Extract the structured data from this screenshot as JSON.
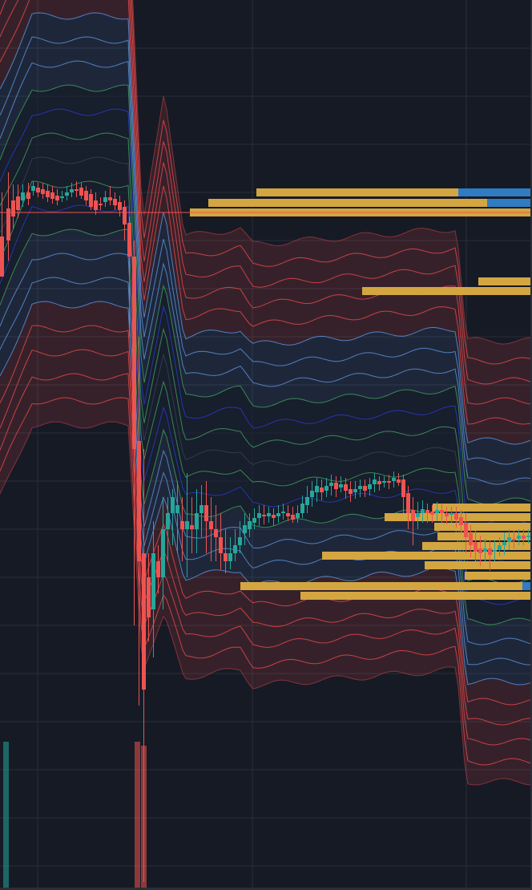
{
  "theme": {
    "background": "#161a25",
    "grid": "#2a2e39",
    "up": "#26a69a",
    "down": "#ef5350",
    "profile": "#d4a641",
    "profile_accent": "#2f7cc4",
    "band_red": "#e04848",
    "band_blue": "#5b8fd6",
    "band_green": "#3f9a5a",
    "band_dark_blue": "#2a39c8"
  },
  "chart_data": {
    "type": "candlestick",
    "xlabel": "",
    "ylabel": "",
    "ylim": [
      0,
      1110
    ],
    "grid": true,
    "legend": "none",
    "price_line": 265,
    "candles": [
      [
        0,
        295,
        345,
        240,
        340
      ],
      [
        8,
        260,
        300,
        215,
        325
      ],
      [
        14,
        250,
        270,
        230,
        285
      ],
      [
        20,
        245,
        262,
        230,
        272
      ],
      [
        26,
        250,
        240,
        230,
        258
      ],
      [
        33,
        240,
        248,
        228,
        256
      ],
      [
        39,
        238,
        232,
        226,
        244
      ],
      [
        45,
        234,
        240,
        228,
        246
      ],
      [
        51,
        236,
        242,
        228,
        248
      ],
      [
        57,
        238,
        246,
        230,
        252
      ],
      [
        63,
        240,
        248,
        232,
        254
      ],
      [
        69,
        244,
        250,
        236,
        256
      ],
      [
        75,
        246,
        245,
        238,
        252
      ],
      [
        81,
        244,
        240,
        232,
        250
      ],
      [
        87,
        240,
        236,
        228,
        246
      ],
      [
        93,
        236,
        238,
        226,
        246
      ],
      [
        99,
        234,
        244,
        228,
        248
      ],
      [
        105,
        238,
        250,
        232,
        256
      ],
      [
        111,
        242,
        258,
        236,
        262
      ],
      [
        117,
        250,
        262,
        240,
        268
      ],
      [
        123,
        254,
        256,
        246,
        262
      ],
      [
        129,
        252,
        246,
        238,
        258
      ],
      [
        135,
        246,
        250,
        232,
        256
      ],
      [
        141,
        248,
        256,
        240,
        262
      ],
      [
        147,
        252,
        262,
        244,
        270
      ],
      [
        153,
        258,
        280,
        250,
        300
      ],
      [
        159,
        278,
        320,
        270,
        420
      ],
      [
        165,
        320,
        560,
        300,
        780
      ],
      [
        171,
        550,
        700,
        420,
        880
      ],
      [
        177,
        690,
        860,
        560,
        1100
      ],
      [
        183,
        720,
        770,
        690,
        800
      ],
      [
        189,
        760,
        690,
        650,
        820
      ],
      [
        195,
        700,
        720,
        680,
        740
      ],
      [
        201,
        720,
        660,
        620,
        760
      ],
      [
        207,
        660,
        640,
        620,
        700
      ],
      [
        213,
        640,
        620,
        610,
        680
      ],
      [
        219,
        640,
        630,
        600,
        690
      ],
      [
        225,
        650,
        660,
        620,
        700
      ],
      [
        231,
        660,
        650,
        590,
        720
      ],
      [
        237,
        655,
        660,
        620,
        690
      ],
      [
        243,
        660,
        640,
        610,
        690
      ],
      [
        249,
        640,
        630,
        605,
        670
      ],
      [
        255,
        630,
        650,
        600,
        690
      ],
      [
        261,
        650,
        660,
        620,
        700
      ],
      [
        267,
        660,
        670,
        630,
        700
      ],
      [
        273,
        670,
        690,
        640,
        710
      ],
      [
        279,
        690,
        700,
        660,
        715
      ],
      [
        285,
        700,
        690,
        670,
        710
      ],
      [
        291,
        690,
        680,
        660,
        700
      ],
      [
        297,
        680,
        670,
        650,
        690
      ],
      [
        303,
        665,
        655,
        640,
        680
      ],
      [
        309,
        660,
        650,
        640,
        670
      ],
      [
        315,
        652,
        646,
        634,
        660
      ],
      [
        321,
        646,
        640,
        630,
        656
      ],
      [
        327,
        642,
        644,
        630,
        654
      ],
      [
        333,
        644,
        640,
        632,
        652
      ],
      [
        339,
        642,
        646,
        634,
        656
      ],
      [
        345,
        644,
        640,
        630,
        652
      ],
      [
        351,
        640,
        638,
        628,
        648
      ],
      [
        357,
        640,
        644,
        630,
        650
      ],
      [
        363,
        642,
        648,
        632,
        652
      ],
      [
        369,
        646,
        640,
        630,
        652
      ],
      [
        375,
        640,
        628,
        618,
        646
      ],
      [
        381,
        630,
        620,
        606,
        640
      ],
      [
        387,
        620,
        612,
        600,
        632
      ],
      [
        393,
        614,
        606,
        596,
        626
      ],
      [
        399,
        608,
        614,
        598,
        624
      ],
      [
        405,
        612,
        606,
        596,
        620
      ],
      [
        411,
        606,
        602,
        592,
        618
      ],
      [
        417,
        602,
        610,
        594,
        620
      ],
      [
        423,
        608,
        604,
        594,
        614
      ],
      [
        429,
        604,
        612,
        596,
        622
      ],
      [
        435,
        610,
        616,
        600,
        626
      ],
      [
        441,
        614,
        610,
        600,
        622
      ],
      [
        447,
        610,
        606,
        598,
        620
      ],
      [
        453,
        606,
        612,
        598,
        620
      ],
      [
        459,
        610,
        604,
        596,
        618
      ],
      [
        465,
        604,
        598,
        590,
        614
      ],
      [
        471,
        600,
        604,
        594,
        612
      ],
      [
        477,
        602,
        600,
        594,
        608
      ],
      [
        483,
        600,
        602,
        592,
        610
      ],
      [
        489,
        600,
        596,
        588,
        608
      ],
      [
        495,
        598,
        602,
        590,
        606
      ],
      [
        501,
        598,
        620,
        592,
        640
      ],
      [
        507,
        615,
        640,
        606,
        660
      ],
      [
        513,
        636,
        650,
        620,
        680
      ],
      [
        519,
        645,
        640,
        626,
        660
      ],
      [
        525,
        640,
        635,
        624,
        652
      ],
      [
        531,
        636,
        640,
        628,
        652
      ],
      [
        537,
        638,
        642,
        630,
        652
      ],
      [
        543,
        640,
        636,
        626,
        650
      ],
      [
        549,
        636,
        640,
        628,
        652
      ],
      [
        555,
        640,
        644,
        632,
        654
      ],
      [
        561,
        642,
        640,
        632,
        652
      ],
      [
        567,
        640,
        648,
        632,
        658
      ],
      [
        573,
        645,
        655,
        636,
        665
      ],
      [
        579,
        652,
        670,
        640,
        690
      ],
      [
        585,
        665,
        680,
        655,
        695
      ],
      [
        591,
        676,
        688,
        662,
        700
      ],
      [
        597,
        684,
        690,
        668,
        706
      ],
      [
        603,
        688,
        684,
        672,
        700
      ],
      [
        609,
        684,
        692,
        674,
        712
      ],
      [
        615,
        688,
        686,
        674,
        700
      ],
      [
        621,
        686,
        680,
        670,
        694
      ],
      [
        627,
        680,
        676,
        664,
        692
      ],
      [
        633,
        676,
        670,
        660,
        686
      ],
      [
        639,
        672,
        674,
        662,
        684
      ],
      [
        645,
        672,
        668,
        660,
        680
      ],
      [
        651,
        668,
        672,
        660,
        680
      ],
      [
        657,
        670,
        668,
        660,
        678
      ]
    ],
    "bands": {
      "segments": [
        [
          0,
          40
        ],
        [
          40,
          165
        ],
        [
          165,
          180
        ],
        [
          180,
          200
        ],
        [
          200,
          215
        ],
        [
          215,
          310
        ],
        [
          310,
          575
        ],
        [
          575,
          580
        ],
        [
          580,
          664
        ]
      ],
      "regimes": [
        {
          "x": 0,
          "center": 290,
          "step": 30
        },
        {
          "x": 40,
          "center": 200,
          "step": 30
        },
        {
          "x": 160,
          "center": 200,
          "step": 30
        },
        {
          "x": 178,
          "center": 560,
          "step": 25
        },
        {
          "x": 205,
          "center": 440,
          "step": 30
        },
        {
          "x": 230,
          "center": 570,
          "step": 25
        },
        {
          "x": 300,
          "center": 560,
          "step": 25
        },
        {
          "x": 315,
          "center": 580,
          "step": 25
        },
        {
          "x": 570,
          "center": 560,
          "step": 25
        },
        {
          "x": 582,
          "center": 700,
          "step": 25
        },
        {
          "x": 664,
          "center": 700,
          "step": 25
        }
      ]
    },
    "volume_profile": [
      {
        "price": 240,
        "start": 320,
        "accent_from": 572,
        "accent": true
      },
      {
        "price": 253,
        "start": 260,
        "accent_from": 608,
        "accent": true
      },
      {
        "price": 265,
        "start": 237,
        "accent_from": null,
        "accent": false
      },
      {
        "price": 351,
        "start": 597,
        "accent_from": null,
        "accent": false
      },
      {
        "price": 363,
        "start": 452,
        "accent_from": null,
        "accent": false
      },
      {
        "price": 633,
        "start": 540,
        "accent_from": null,
        "accent": false
      },
      {
        "price": 645,
        "start": 480,
        "accent_from": null,
        "accent": false
      },
      {
        "price": 657,
        "start": 542,
        "accent_from": null,
        "accent": false
      },
      {
        "price": 669,
        "start": 546,
        "accent_from": null,
        "accent": false
      },
      {
        "price": 681,
        "start": 527,
        "accent_from": null,
        "accent": false
      },
      {
        "price": 693,
        "start": 402,
        "accent_from": null,
        "accent": false
      },
      {
        "price": 705,
        "start": 530,
        "accent_from": null,
        "accent": false
      },
      {
        "price": 718,
        "start": 580,
        "accent_from": null,
        "accent": false
      },
      {
        "price": 731,
        "start": 300,
        "accent_from": 652,
        "accent": true
      },
      {
        "price": 743,
        "start": 375,
        "accent_from": null,
        "accent": false
      }
    ],
    "volume_bars": [
      {
        "x": 4,
        "top": 925,
        "color": "up"
      },
      {
        "x": 168,
        "top": 925,
        "color": "down"
      },
      {
        "x": 176,
        "top": 930,
        "color": "down"
      }
    ]
  }
}
